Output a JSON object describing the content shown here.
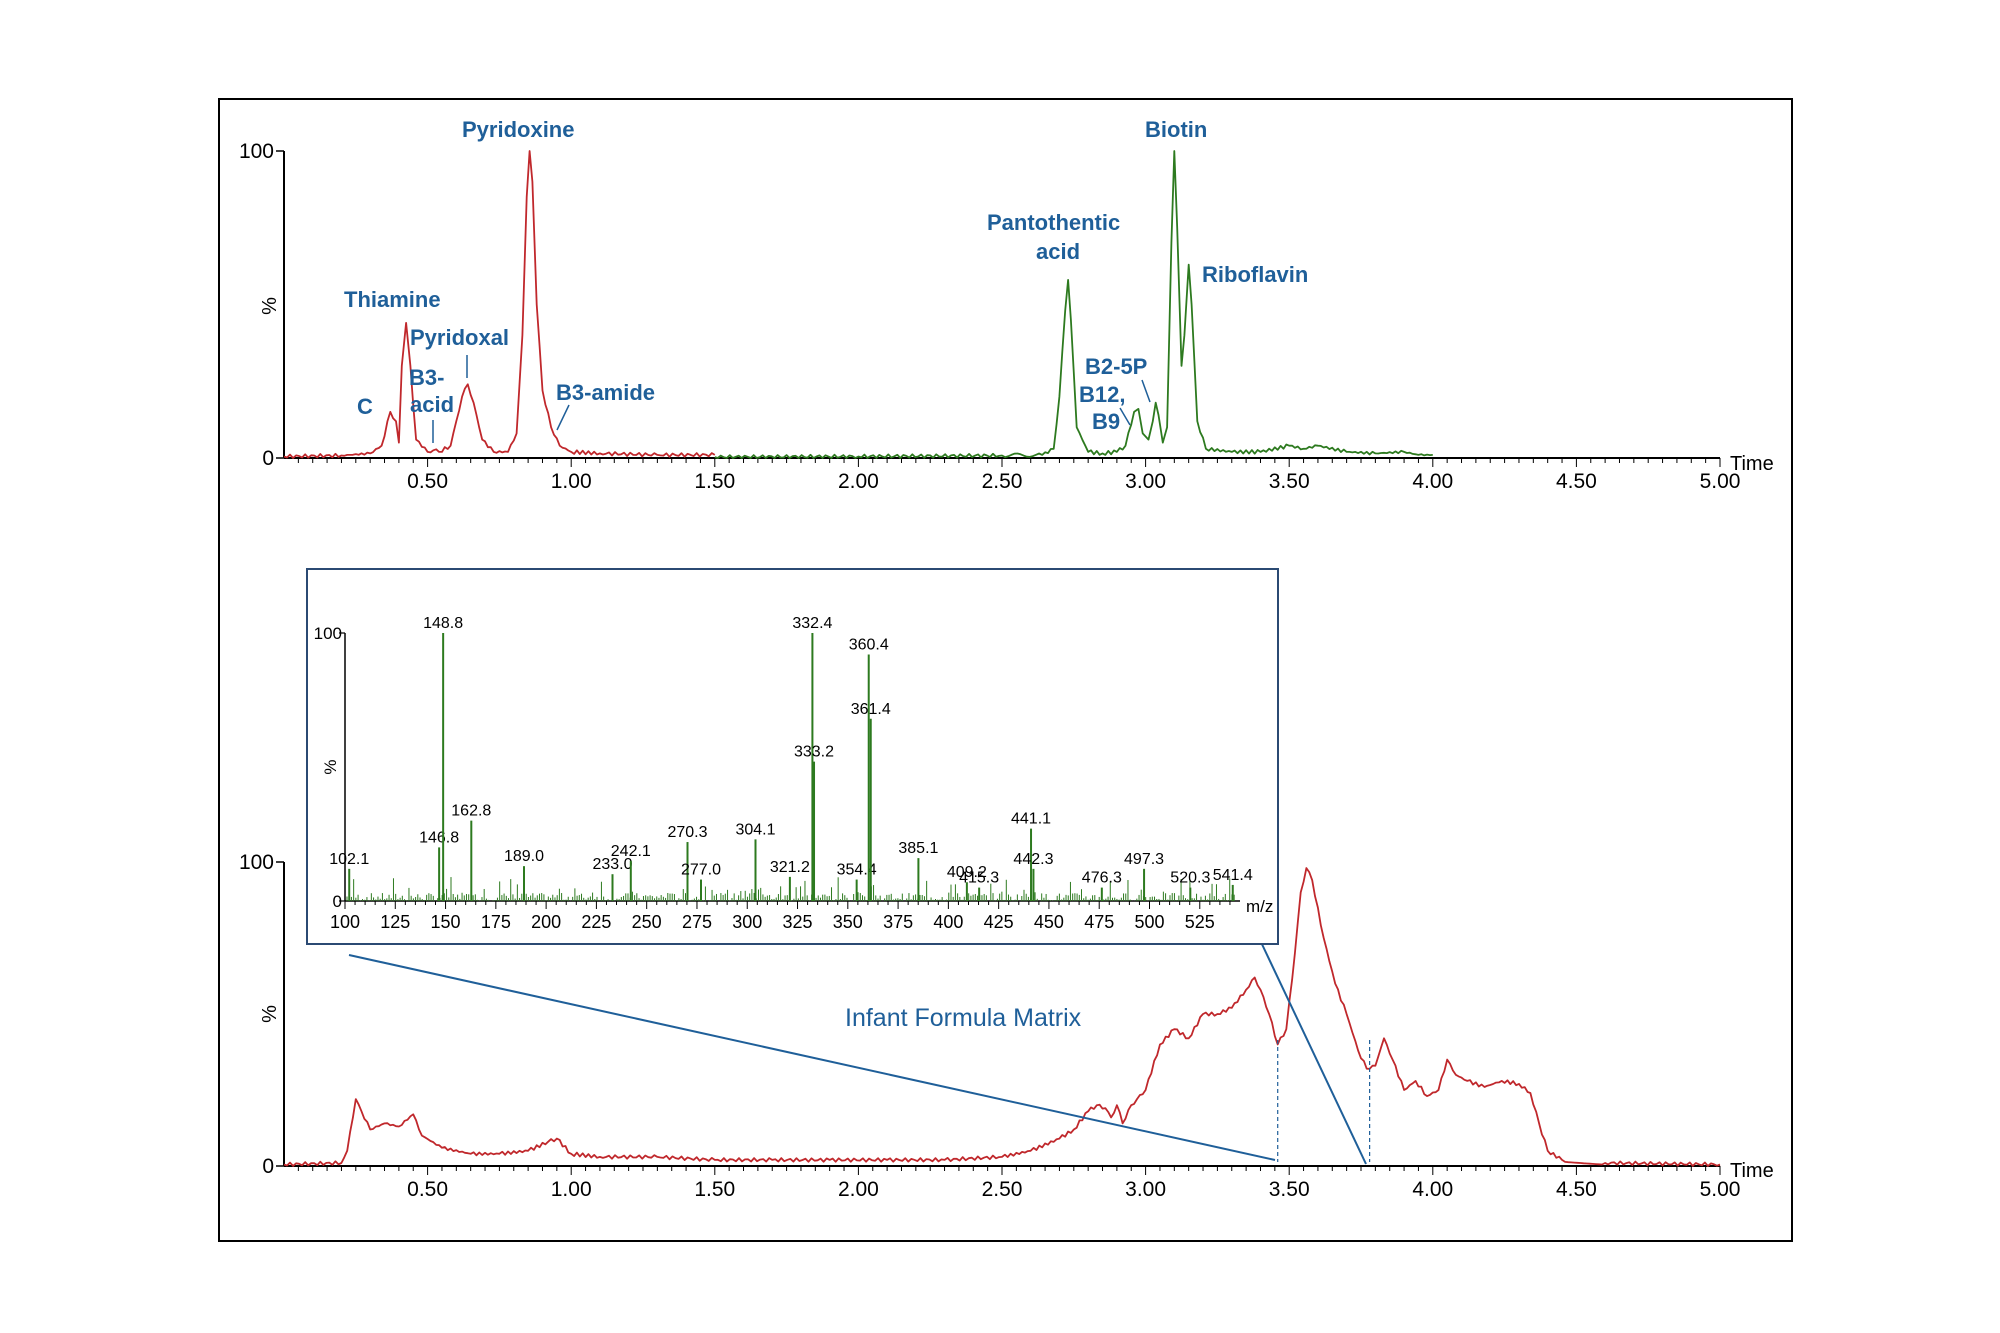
{
  "chart_data": [
    {
      "type": "line",
      "name": "top-chromatogram",
      "xlabel": "Time",
      "ylabel": "%",
      "xlim": [
        0,
        5.0
      ],
      "ylim": [
        0,
        100
      ],
      "x_ticks": [
        "0.50",
        "1.00",
        "1.50",
        "2.00",
        "2.50",
        "3.00",
        "3.50",
        "4.00",
        "4.50",
        "5.00"
      ],
      "y_ticks": [
        "0",
        "100"
      ],
      "series": [
        {
          "color": "#c0282c",
          "points": [
            [
              0.0,
              0.5
            ],
            [
              0.2,
              0.8
            ],
            [
              0.3,
              1.5
            ],
            [
              0.34,
              4
            ],
            [
              0.37,
              15
            ],
            [
              0.39,
              12
            ],
            [
              0.4,
              5
            ],
            [
              0.41,
              30
            ],
            [
              0.425,
              44
            ],
            [
              0.44,
              30
            ],
            [
              0.46,
              6
            ],
            [
              0.5,
              2
            ],
            [
              0.52,
              2.5
            ],
            [
              0.54,
              2
            ],
            [
              0.58,
              4
            ],
            [
              0.6,
              12
            ],
            [
              0.62,
              20
            ],
            [
              0.64,
              24
            ],
            [
              0.66,
              18
            ],
            [
              0.69,
              6
            ],
            [
              0.73,
              2
            ],
            [
              0.78,
              2
            ],
            [
              0.81,
              8
            ],
            [
              0.83,
              40
            ],
            [
              0.845,
              85
            ],
            [
              0.855,
              100
            ],
            [
              0.865,
              90
            ],
            [
              0.88,
              50
            ],
            [
              0.9,
              22
            ],
            [
              0.93,
              10
            ],
            [
              0.96,
              4
            ],
            [
              1.0,
              2
            ],
            [
              1.1,
              1.5
            ],
            [
              1.3,
              1
            ],
            [
              1.5,
              1
            ]
          ]
        },
        {
          "color": "#2d7a1f",
          "points": [
            [
              1.5,
              0.3
            ],
            [
              2.0,
              0.5
            ],
            [
              2.5,
              0.8
            ],
            [
              2.64,
              1
            ],
            [
              2.68,
              3
            ],
            [
              2.7,
              20
            ],
            [
              2.72,
              48
            ],
            [
              2.73,
              58
            ],
            [
              2.74,
              45
            ],
            [
              2.76,
              10
            ],
            [
              2.8,
              2
            ],
            [
              2.85,
              1.5
            ],
            [
              2.9,
              2
            ],
            [
              2.93,
              4
            ],
            [
              2.96,
              15
            ],
            [
              2.975,
              16
            ],
            [
              2.99,
              8
            ],
            [
              3.01,
              6
            ],
            [
              3.025,
              12
            ],
            [
              3.035,
              18
            ],
            [
              3.045,
              14
            ],
            [
              3.06,
              5
            ],
            [
              3.075,
              10
            ],
            [
              3.09,
              70
            ],
            [
              3.1,
              100
            ],
            [
              3.11,
              75
            ],
            [
              3.125,
              30
            ],
            [
              3.135,
              40
            ],
            [
              3.15,
              63
            ],
            [
              3.16,
              50
            ],
            [
              3.18,
              12
            ],
            [
              3.21,
              3
            ],
            [
              3.3,
              2
            ],
            [
              3.4,
              2
            ],
            [
              3.5,
              4
            ],
            [
              3.55,
              3
            ],
            [
              3.6,
              4
            ],
            [
              3.7,
              2
            ],
            [
              3.8,
              1.5
            ],
            [
              3.9,
              2
            ],
            [
              3.95,
              1
            ],
            [
              4.0,
              1
            ]
          ]
        }
      ],
      "peak_labels": [
        "C",
        "Thiamine",
        "B3-",
        "acid",
        "Pyridoxal",
        "Pyridoxine",
        "B3-amide",
        "Pantothentic",
        "acid",
        "B2-5P",
        "B12,",
        "B9",
        "Biotin",
        "Riboflavin"
      ]
    },
    {
      "type": "line",
      "name": "bottom-chromatogram",
      "title": "Infant Formula Matrix",
      "xlabel": "Time",
      "ylabel": "%",
      "xlim": [
        0,
        5.0
      ],
      "ylim": [
        0,
        100
      ],
      "x_ticks": [
        "0.50",
        "1.00",
        "1.50",
        "2.00",
        "2.50",
        "3.00",
        "3.50",
        "4.00",
        "4.50",
        "5.00"
      ],
      "y_ticks": [
        "0",
        "100"
      ],
      "series": [
        {
          "color": "#c0282c",
          "points": [
            [
              0.0,
              0.5
            ],
            [
              0.2,
              1
            ],
            [
              0.22,
              5
            ],
            [
              0.25,
              22
            ],
            [
              0.27,
              18
            ],
            [
              0.3,
              12
            ],
            [
              0.35,
              14
            ],
            [
              0.4,
              13
            ],
            [
              0.45,
              17
            ],
            [
              0.48,
              10
            ],
            [
              0.55,
              6
            ],
            [
              0.65,
              4
            ],
            [
              0.75,
              4
            ],
            [
              0.85,
              5
            ],
            [
              0.92,
              8
            ],
            [
              0.95,
              9
            ],
            [
              1.0,
              4
            ],
            [
              1.1,
              3
            ],
            [
              1.3,
              3
            ],
            [
              1.5,
              2
            ],
            [
              1.7,
              2
            ],
            [
              1.9,
              2
            ],
            [
              2.1,
              2
            ],
            [
              2.3,
              2
            ],
            [
              2.5,
              3
            ],
            [
              2.6,
              5
            ],
            [
              2.7,
              9
            ],
            [
              2.75,
              12
            ],
            [
              2.8,
              18
            ],
            [
              2.83,
              20
            ],
            [
              2.86,
              19
            ],
            [
              2.88,
              16
            ],
            [
              2.9,
              20
            ],
            [
              2.92,
              14
            ],
            [
              2.95,
              20
            ],
            [
              2.97,
              22
            ],
            [
              3.0,
              25
            ],
            [
              3.05,
              40
            ],
            [
              3.1,
              45
            ],
            [
              3.15,
              42
            ],
            [
              3.2,
              50
            ],
            [
              3.25,
              50
            ],
            [
              3.3,
              52
            ],
            [
              3.35,
              58
            ],
            [
              3.38,
              62
            ],
            [
              3.4,
              58
            ],
            [
              3.43,
              50
            ],
            [
              3.46,
              40
            ],
            [
              3.49,
              45
            ],
            [
              3.52,
              70
            ],
            [
              3.54,
              90
            ],
            [
              3.56,
              98
            ],
            [
              3.58,
              94
            ],
            [
              3.62,
              75
            ],
            [
              3.66,
              60
            ],
            [
              3.7,
              50
            ],
            [
              3.74,
              38
            ],
            [
              3.77,
              32
            ],
            [
              3.8,
              33
            ],
            [
              3.83,
              42
            ],
            [
              3.86,
              35
            ],
            [
              3.9,
              25
            ],
            [
              3.94,
              28
            ],
            [
              3.98,
              23
            ],
            [
              4.02,
              25
            ],
            [
              4.05,
              35
            ],
            [
              4.08,
              30
            ],
            [
              4.12,
              28
            ],
            [
              4.18,
              26
            ],
            [
              4.24,
              28
            ],
            [
              4.3,
              27
            ],
            [
              4.34,
              24
            ],
            [
              4.37,
              14
            ],
            [
              4.4,
              5
            ],
            [
              4.45,
              2
            ],
            [
              4.6,
              1
            ],
            [
              5.0,
              0.5
            ]
          ]
        }
      ],
      "markers": [
        3.46,
        3.78
      ]
    },
    {
      "type": "bar",
      "name": "inset-mass-spectrum",
      "xlabel": "m/z",
      "ylabel": "%",
      "xlim": [
        100,
        545
      ],
      "ylim": [
        0,
        100
      ],
      "x_ticks": [
        "100",
        "125",
        "150",
        "175",
        "200",
        "225",
        "250",
        "275",
        "300",
        "325",
        "350",
        "375",
        "400",
        "425",
        "450",
        "475",
        "500",
        "525"
      ],
      "y_ticks": [
        "0",
        "100"
      ],
      "color": "#2d7a1f",
      "peaks": [
        {
          "mz": 102.1,
          "value": 12,
          "label": "102.1"
        },
        {
          "mz": 146.8,
          "value": 20,
          "label": "146.8"
        },
        {
          "mz": 148.8,
          "value": 100,
          "label": "148.8"
        },
        {
          "mz": 162.8,
          "value": 30,
          "label": "162.8"
        },
        {
          "mz": 189.0,
          "value": 13,
          "label": "189.0"
        },
        {
          "mz": 233.0,
          "value": 10,
          "label": "233.0"
        },
        {
          "mz": 242.1,
          "value": 15,
          "label": "242.1"
        },
        {
          "mz": 270.3,
          "value": 22,
          "label": "270.3"
        },
        {
          "mz": 277.0,
          "value": 8,
          "label": "277.0"
        },
        {
          "mz": 304.1,
          "value": 23,
          "label": "304.1"
        },
        {
          "mz": 321.2,
          "value": 9,
          "label": "321.2"
        },
        {
          "mz": 332.4,
          "value": 100,
          "label": "332.4"
        },
        {
          "mz": 333.2,
          "value": 52,
          "label": "333.2"
        },
        {
          "mz": 354.4,
          "value": 8,
          "label": "354.4"
        },
        {
          "mz": 360.4,
          "value": 92,
          "label": "360.4"
        },
        {
          "mz": 361.4,
          "value": 68,
          "label": "361.4"
        },
        {
          "mz": 385.1,
          "value": 16,
          "label": "385.1"
        },
        {
          "mz": 409.2,
          "value": 7,
          "label": "409.2"
        },
        {
          "mz": 415.3,
          "value": 5,
          "label": "415.3"
        },
        {
          "mz": 441.1,
          "value": 27,
          "label": "441.1"
        },
        {
          "mz": 442.3,
          "value": 12,
          "label": "442.3"
        },
        {
          "mz": 476.3,
          "value": 5,
          "label": "476.3"
        },
        {
          "mz": 497.3,
          "value": 12,
          "label": "497.3"
        },
        {
          "mz": 520.3,
          "value": 5,
          "label": "520.3"
        },
        {
          "mz": 541.4,
          "value": 6,
          "label": "541.4"
        }
      ]
    }
  ]
}
